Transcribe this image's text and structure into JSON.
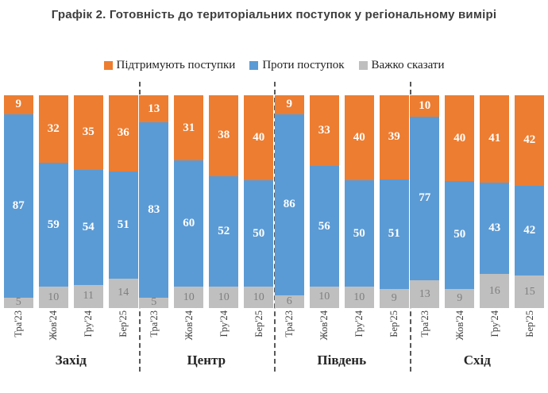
{
  "title": "Графік 2. Готовність до територіальних поступок у регіональному вимірі",
  "chart_data": {
    "type": "bar",
    "variant": "stacked-percent-column",
    "unit": "%",
    "grid": false,
    "legend_position": "top",
    "separator_style": "dashed",
    "separator_color": "#595959",
    "categories": [
      "Тра'23",
      "Жов'24",
      "Гру'24",
      "Бер'25"
    ],
    "groups": [
      "Захід",
      "Центр",
      "Південь",
      "Схід"
    ],
    "series": [
      {
        "name": "Підтримують поступки",
        "color": "#ED7D31",
        "label_color": "#FFFFFF",
        "values": {
          "Захід": [
            9,
            32,
            35,
            36
          ],
          "Центр": [
            13,
            31,
            38,
            40
          ],
          "Південь": [
            9,
            33,
            40,
            39
          ],
          "Схід": [
            10,
            40,
            41,
            42
          ]
        }
      },
      {
        "name": "Проти поступок",
        "color": "#5B9BD5",
        "label_color": "#FFFFFF",
        "values": {
          "Захід": [
            87,
            59,
            54,
            51
          ],
          "Центр": [
            83,
            60,
            52,
            50
          ],
          "Південь": [
            86,
            56,
            50,
            51
          ],
          "Схід": [
            77,
            50,
            43,
            42
          ]
        }
      },
      {
        "name": "Важко сказати",
        "color": "#BFBFBF",
        "label_color": "#7F7F7F",
        "values": {
          "Захід": [
            5,
            10,
            11,
            14
          ],
          "Центр": [
            5,
            10,
            10,
            10
          ],
          "Південь": [
            6,
            10,
            10,
            9
          ],
          "Схід": [
            13,
            9,
            16,
            15
          ]
        }
      }
    ]
  }
}
